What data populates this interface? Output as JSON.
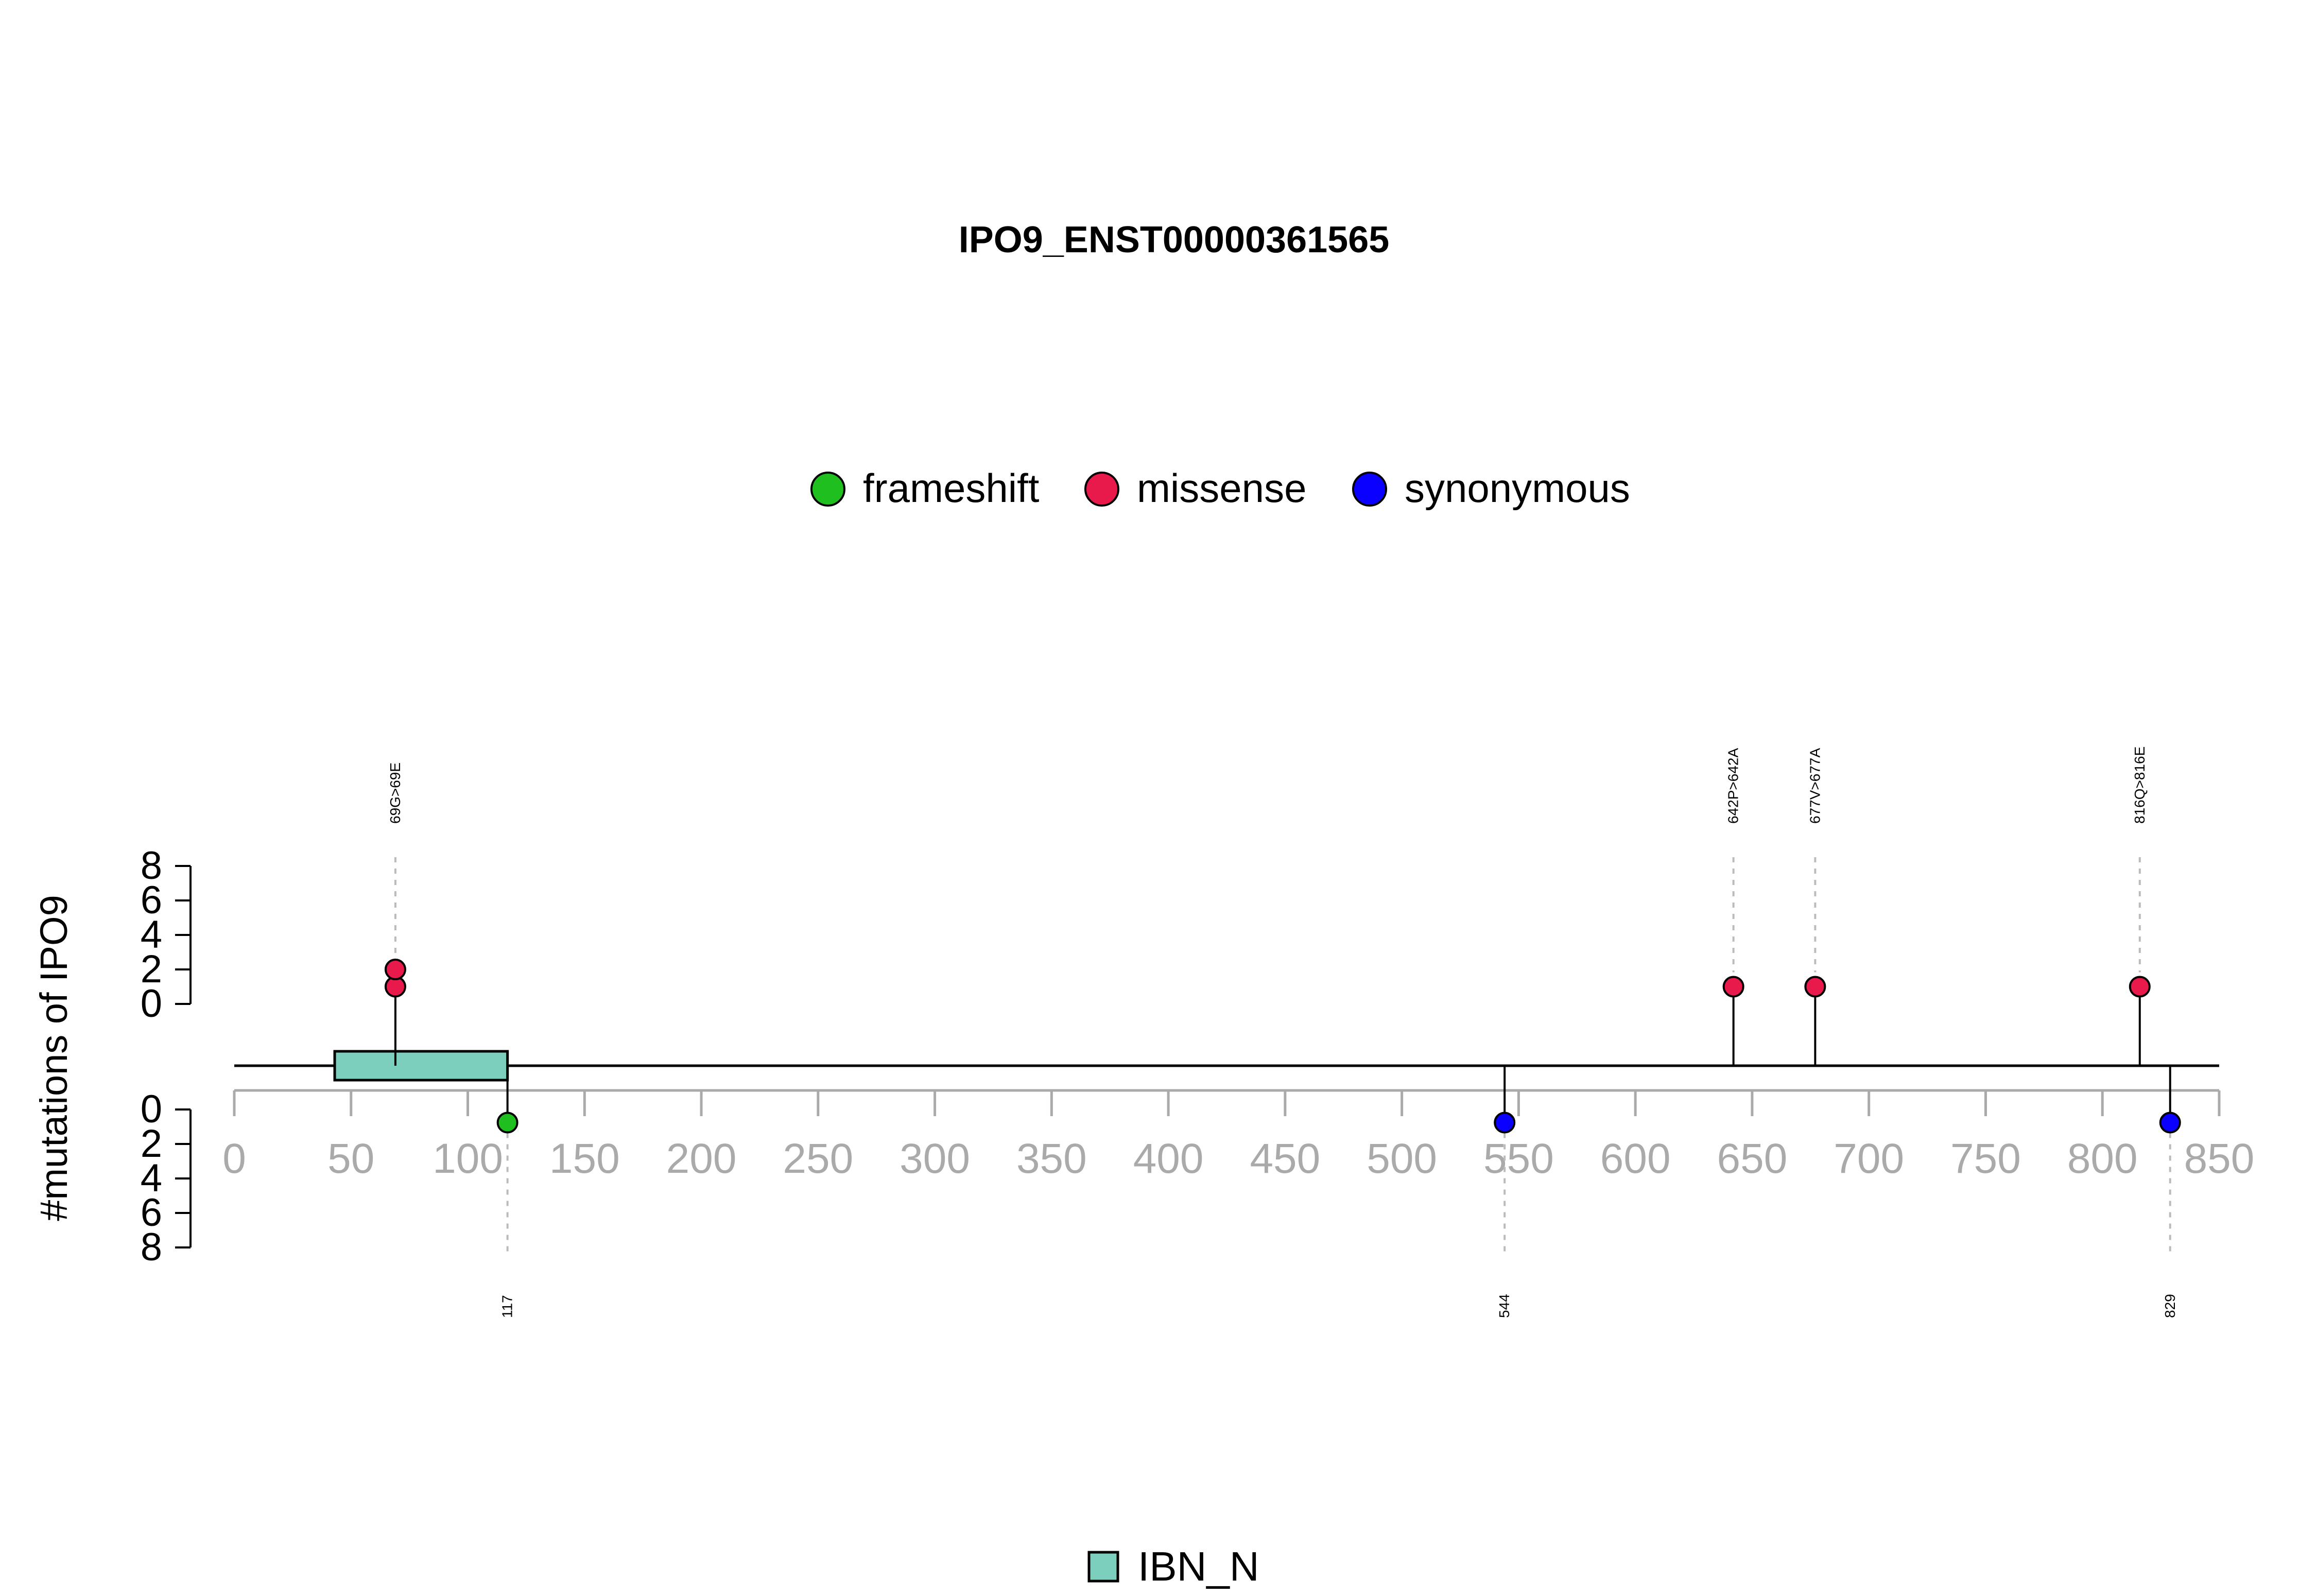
{
  "chart_data": {
    "type": "lollipop",
    "title": "IPO9_ENST00000361565",
    "ylabel": "#mutations of IPO9",
    "xlim": [
      0,
      850
    ],
    "x_ticks": [
      0,
      50,
      100,
      150,
      200,
      250,
      300,
      350,
      400,
      450,
      500,
      550,
      600,
      650,
      700,
      750,
      800,
      850
    ],
    "y_top_ticks": [
      0,
      2,
      4,
      6,
      8
    ],
    "y_bottom_ticks": [
      0,
      2,
      4,
      6,
      8
    ],
    "protein_length": 850,
    "legend_top": [
      {
        "name": "frameshift",
        "color": "#1fbf1f"
      },
      {
        "name": "missense",
        "color": "#e8194b"
      },
      {
        "name": "synonymous",
        "color": "#0a00ff"
      }
    ],
    "domains": [
      {
        "name": "IBN_N",
        "start": 43,
        "end": 117,
        "color": "#7dcfbd"
      }
    ],
    "mutations_top": [
      {
        "pos": 69,
        "label": "69G>69E",
        "count": 2,
        "type": "missense"
      },
      {
        "pos": 642,
        "label": "642P>642A",
        "count": 1,
        "type": "missense"
      },
      {
        "pos": 677,
        "label": "677V>677A",
        "count": 1,
        "type": "missense"
      },
      {
        "pos": 816,
        "label": "816Q>816E",
        "count": 1,
        "type": "missense"
      }
    ],
    "mutations_bottom": [
      {
        "pos": 117,
        "label": "117",
        "count": 1,
        "type": "frameshift"
      },
      {
        "pos": 544,
        "label": "544",
        "count": 1,
        "type": "synonymous"
      },
      {
        "pos": 829,
        "label": "829",
        "count": 1,
        "type": "synonymous"
      }
    ]
  }
}
